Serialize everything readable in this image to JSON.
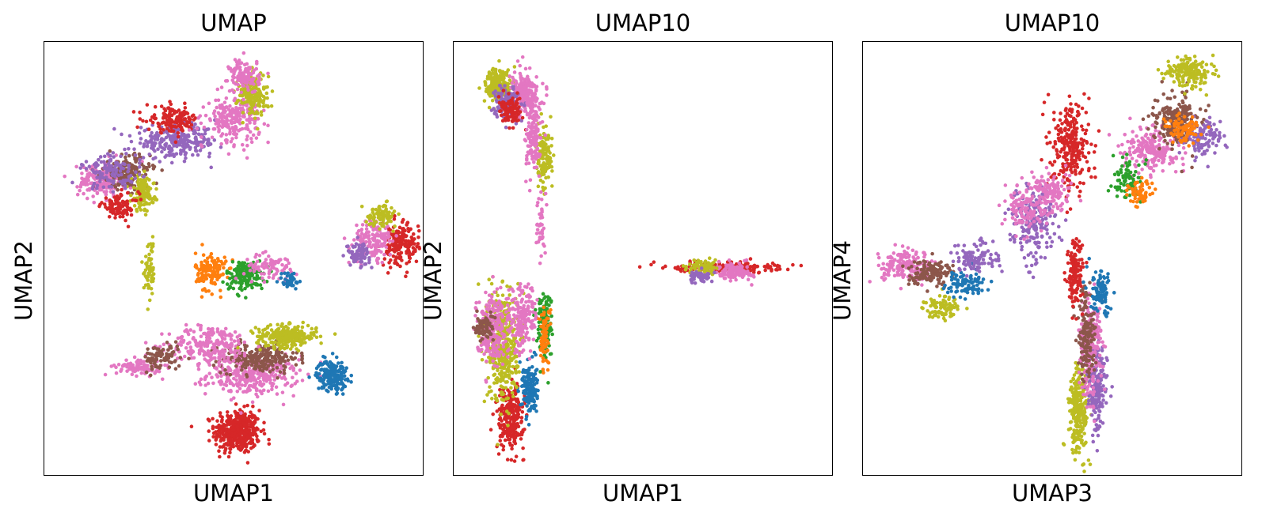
{
  "chart_data": [
    {
      "type": "scatter",
      "title": "UMAP",
      "xlabel": "UMAP1",
      "ylabel": "UMAP2",
      "ticks": "none",
      "colors": [
        "#1f77b4",
        "#ff7f0e",
        "#2ca02c",
        "#d62728",
        "#9467bd",
        "#8c564b",
        "#e377c2",
        "#bcbd22",
        "#a855f7"
      ],
      "xlim": [
        0,
        10
      ],
      "ylim": [
        0,
        10
      ],
      "clusters": [
        {
          "center": [
            5.1,
            1.0
          ],
          "spread": [
            0.6,
            0.5
          ],
          "n": 420,
          "color": 3
        },
        {
          "center": [
            5.5,
            2.3
          ],
          "spread": [
            1.2,
            0.45
          ],
          "n": 320,
          "color": 6
        },
        {
          "center": [
            5.7,
            2.7
          ],
          "spread": [
            1.0,
            0.35
          ],
          "n": 220,
          "color": 5
        },
        {
          "center": [
            4.4,
            3.0
          ],
          "spread": [
            1.1,
            0.45
          ],
          "n": 220,
          "color": 6
        },
        {
          "center": [
            6.4,
            3.2
          ],
          "spread": [
            0.8,
            0.25
          ],
          "n": 260,
          "color": 7
        },
        {
          "center": [
            2.5,
            2.5
          ],
          "spread": [
            0.6,
            0.2
          ],
          "n": 90,
          "color": 6
        },
        {
          "center": [
            3.1,
            2.7
          ],
          "spread": [
            0.5,
            0.3
          ],
          "n": 90,
          "color": 5
        },
        {
          "center": [
            7.6,
            2.3
          ],
          "spread": [
            0.4,
            0.35
          ],
          "n": 190,
          "color": 0
        },
        {
          "center": [
            4.4,
            4.7
          ],
          "spread": [
            0.4,
            0.45
          ],
          "n": 140,
          "color": 1
        },
        {
          "center": [
            5.3,
            4.6
          ],
          "spread": [
            0.5,
            0.35
          ],
          "n": 150,
          "color": 2
        },
        {
          "center": [
            6.0,
            4.8
          ],
          "spread": [
            0.7,
            0.3
          ],
          "n": 80,
          "color": 6
        },
        {
          "center": [
            6.5,
            4.5
          ],
          "spread": [
            0.3,
            0.2
          ],
          "n": 40,
          "color": 0
        },
        {
          "center": [
            1.5,
            6.8
          ],
          "spread": [
            0.6,
            0.4
          ],
          "n": 190,
          "color": 6
        },
        {
          "center": [
            2.2,
            7.0
          ],
          "spread": [
            0.6,
            0.4
          ],
          "n": 160,
          "color": 5
        },
        {
          "center": [
            2.6,
            6.5
          ],
          "spread": [
            0.3,
            0.4
          ],
          "n": 140,
          "color": 7
        },
        {
          "center": [
            2.0,
            6.2
          ],
          "spread": [
            0.5,
            0.3
          ],
          "n": 90,
          "color": 3
        },
        {
          "center": [
            3.5,
            7.7
          ],
          "spread": [
            1.1,
            0.35
          ],
          "n": 260,
          "color": 4
        },
        {
          "center": [
            3.4,
            8.2
          ],
          "spread": [
            0.7,
            0.3
          ],
          "n": 140,
          "color": 3
        },
        {
          "center": [
            5.0,
            8.2
          ],
          "spread": [
            0.7,
            0.5
          ],
          "n": 220,
          "color": 6
        },
        {
          "center": [
            5.5,
            8.8
          ],
          "spread": [
            0.4,
            0.5
          ],
          "n": 180,
          "color": 7
        },
        {
          "center": [
            5.3,
            9.2
          ],
          "spread": [
            0.4,
            0.4
          ],
          "n": 120,
          "color": 6
        },
        {
          "center": [
            1.8,
            7.0
          ],
          "spread": [
            0.8,
            0.4
          ],
          "n": 120,
          "color": 4
        },
        {
          "center": [
            9.4,
            5.3
          ],
          "spread": [
            0.5,
            0.5
          ],
          "n": 170,
          "color": 3
        },
        {
          "center": [
            8.7,
            5.4
          ],
          "spread": [
            0.5,
            0.5
          ],
          "n": 150,
          "color": 6
        },
        {
          "center": [
            8.3,
            5.1
          ],
          "spread": [
            0.3,
            0.25
          ],
          "n": 90,
          "color": 4
        },
        {
          "center": [
            8.9,
            6.0
          ],
          "spread": [
            0.4,
            0.25
          ],
          "n": 80,
          "color": 7
        },
        {
          "center": [
            2.8,
            4.8
          ],
          "spread": [
            0.15,
            0.7
          ],
          "n": 60,
          "color": 7
        }
      ]
    },
    {
      "type": "scatter",
      "title": "UMAP10",
      "xlabel": "UMAP1",
      "ylabel": "UMAP2",
      "ticks": "none",
      "colors": [
        "#1f77b4",
        "#ff7f0e",
        "#2ca02c",
        "#d62728",
        "#9467bd",
        "#8c564b",
        "#e377c2",
        "#bcbd22",
        "#a855f7"
      ],
      "xlim": [
        0,
        10
      ],
      "ylim": [
        0,
        10
      ],
      "clusters": [
        {
          "center": [
            1.5,
            1.3
          ],
          "spread": [
            0.35,
            0.7
          ],
          "n": 260,
          "color": 3
        },
        {
          "center": [
            2.0,
            2.0
          ],
          "spread": [
            0.2,
            0.6
          ],
          "n": 160,
          "color": 0
        },
        {
          "center": [
            1.3,
            3.0
          ],
          "spread": [
            0.4,
            1.3
          ],
          "n": 420,
          "color": 7
        },
        {
          "center": [
            1.0,
            3.4
          ],
          "spread": [
            0.4,
            0.8
          ],
          "n": 220,
          "color": 6
        },
        {
          "center": [
            2.4,
            3.5
          ],
          "spread": [
            0.2,
            0.8
          ],
          "n": 120,
          "color": 2
        },
        {
          "center": [
            2.4,
            3.2
          ],
          "spread": [
            0.15,
            0.7
          ],
          "n": 80,
          "color": 1
        },
        {
          "center": [
            1.8,
            3.6
          ],
          "spread": [
            0.4,
            0.8
          ],
          "n": 180,
          "color": 6
        },
        {
          "center": [
            0.8,
            3.4
          ],
          "spread": [
            0.25,
            0.3
          ],
          "n": 70,
          "color": 5
        },
        {
          "center": [
            1.2,
            9.0
          ],
          "spread": [
            0.35,
            0.4
          ],
          "n": 220,
          "color": 7
        },
        {
          "center": [
            1.9,
            8.8
          ],
          "spread": [
            0.35,
            0.45
          ],
          "n": 220,
          "color": 6
        },
        {
          "center": [
            1.4,
            8.6
          ],
          "spread": [
            0.3,
            0.4
          ],
          "n": 140,
          "color": 4
        },
        {
          "center": [
            1.5,
            8.4
          ],
          "spread": [
            0.3,
            0.3
          ],
          "n": 100,
          "color": 3
        },
        {
          "center": [
            2.4,
            7.3
          ],
          "spread": [
            0.2,
            0.7
          ],
          "n": 140,
          "color": 7
        },
        {
          "center": [
            2.1,
            7.8
          ],
          "spread": [
            0.2,
            0.8
          ],
          "n": 140,
          "color": 6
        },
        {
          "center": [
            2.3,
            5.8
          ],
          "spread": [
            0.1,
            0.8
          ],
          "n": 40,
          "color": 6
        },
        {
          "center": [
            7.2,
            4.8
          ],
          "spread": [
            1.4,
            0.12
          ],
          "n": 200,
          "color": 3
        },
        {
          "center": [
            7.4,
            4.7
          ],
          "spread": [
            0.5,
            0.2
          ],
          "n": 120,
          "color": 6
        },
        {
          "center": [
            6.6,
            4.8
          ],
          "spread": [
            0.4,
            0.15
          ],
          "n": 80,
          "color": 7
        },
        {
          "center": [
            6.5,
            4.6
          ],
          "spread": [
            0.4,
            0.15
          ],
          "n": 60,
          "color": 4
        }
      ]
    },
    {
      "type": "scatter",
      "title": "UMAP10",
      "xlabel": "UMAP3",
      "ylabel": "UMAP4",
      "ticks": "none",
      "colors": [
        "#1f77b4",
        "#ff7f0e",
        "#2ca02c",
        "#d62728",
        "#9467bd",
        "#8c564b",
        "#e377c2",
        "#bcbd22",
        "#a855f7"
      ],
      "xlim": [
        0,
        10
      ],
      "ylim": [
        0,
        10
      ],
      "clusters": [
        {
          "center": [
            5.7,
            1.5
          ],
          "spread": [
            0.25,
            1.0
          ],
          "n": 260,
          "color": 7
        },
        {
          "center": [
            6.2,
            2.0
          ],
          "spread": [
            0.25,
            1.0
          ],
          "n": 180,
          "color": 4
        },
        {
          "center": [
            6.0,
            3.0
          ],
          "spread": [
            0.3,
            1.2
          ],
          "n": 220,
          "color": 6
        },
        {
          "center": [
            5.9,
            3.2
          ],
          "spread": [
            0.25,
            1.0
          ],
          "n": 140,
          "color": 5
        },
        {
          "center": [
            5.6,
            4.6
          ],
          "spread": [
            0.2,
            0.8
          ],
          "n": 140,
          "color": 3
        },
        {
          "center": [
            6.3,
            4.2
          ],
          "spread": [
            0.3,
            0.5
          ],
          "n": 90,
          "color": 0
        },
        {
          "center": [
            1.2,
            4.8
          ],
          "spread": [
            0.7,
            0.35
          ],
          "n": 160,
          "color": 6
        },
        {
          "center": [
            1.8,
            4.7
          ],
          "spread": [
            0.6,
            0.3
          ],
          "n": 130,
          "color": 5
        },
        {
          "center": [
            2.1,
            3.9
          ],
          "spread": [
            0.5,
            0.25
          ],
          "n": 90,
          "color": 7
        },
        {
          "center": [
            2.7,
            4.4
          ],
          "spread": [
            0.5,
            0.3
          ],
          "n": 90,
          "color": 0
        },
        {
          "center": [
            3.0,
            5.0
          ],
          "spread": [
            0.6,
            0.4
          ],
          "n": 100,
          "color": 4
        },
        {
          "center": [
            4.5,
            5.8
          ],
          "spread": [
            0.6,
            0.8
          ],
          "n": 200,
          "color": 4
        },
        {
          "center": [
            4.3,
            6.2
          ],
          "spread": [
            0.5,
            0.6
          ],
          "n": 120,
          "color": 6
        },
        {
          "center": [
            5.5,
            7.6
          ],
          "spread": [
            0.5,
            1.0
          ],
          "n": 260,
          "color": 3
        },
        {
          "center": [
            5.0,
            6.5
          ],
          "spread": [
            0.5,
            0.5
          ],
          "n": 120,
          "color": 6
        },
        {
          "center": [
            7.6,
            7.5
          ],
          "spread": [
            0.7,
            0.5
          ],
          "n": 200,
          "color": 6
        },
        {
          "center": [
            8.3,
            8.2
          ],
          "spread": [
            0.6,
            0.6
          ],
          "n": 200,
          "color": 5
        },
        {
          "center": [
            8.6,
            9.3
          ],
          "spread": [
            0.6,
            0.35
          ],
          "n": 180,
          "color": 7
        },
        {
          "center": [
            9.0,
            7.8
          ],
          "spread": [
            0.5,
            0.4
          ],
          "n": 120,
          "color": 4
        },
        {
          "center": [
            7.0,
            6.8
          ],
          "spread": [
            0.4,
            0.4
          ],
          "n": 80,
          "color": 2
        },
        {
          "center": [
            7.3,
            6.5
          ],
          "spread": [
            0.3,
            0.3
          ],
          "n": 60,
          "color": 1
        },
        {
          "center": [
            8.5,
            8.0
          ],
          "spread": [
            0.5,
            0.4
          ],
          "n": 80,
          "color": 1
        }
      ]
    }
  ]
}
